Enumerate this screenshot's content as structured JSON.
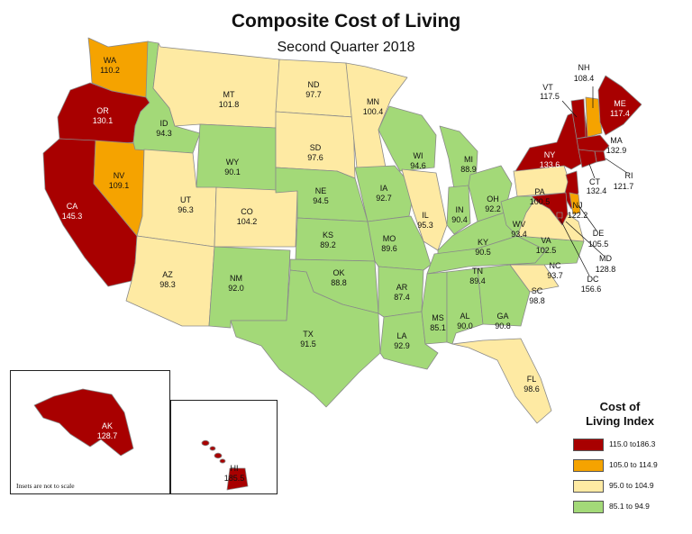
{
  "title": "Composite Cost of Living",
  "subtitle": "Second Quarter 2018",
  "legend": {
    "title_line1": "Cost of",
    "title_line2": "Living Index",
    "items": [
      {
        "label": "115.0 to186.3",
        "color": "#a80000"
      },
      {
        "label": "105.0 to 114.9",
        "color": "#f5a300"
      },
      {
        "label": "95.0 to 104.9",
        "color": "#feeaa3"
      },
      {
        "label": "85.1 to 94.9",
        "color": "#a3d978"
      }
    ]
  },
  "inset_note": "Insets are not to scale",
  "states": {
    "WA": "110.2",
    "OR": "130.1",
    "CA": "145.3",
    "NV": "109.1",
    "ID": "94.3",
    "MT": "101.8",
    "WY": "90.1",
    "UT": "96.3",
    "AZ": "98.3",
    "CO": "104.2",
    "NM": "92.0",
    "ND": "97.7",
    "SD": "97.6",
    "NE": "94.5",
    "KS": "89.2",
    "OK": "88.8",
    "TX": "91.5",
    "MN": "100.4",
    "IA": "92.7",
    "MO": "89.6",
    "AR": "87.4",
    "LA": "92.9",
    "WI": "94.6",
    "IL": "95.3",
    "MI": "88.9",
    "IN": "90.4",
    "OH": "92.2",
    "KY": "90.5",
    "TN": "89.4",
    "MS": "85.1",
    "AL": "90.0",
    "GA": "90.8",
    "FL": "98.6",
    "SC": "98.8",
    "NC": "93.7",
    "VA": "102.5",
    "WV": "93.4",
    "PA": "100.5",
    "NY": "133.6",
    "VT": "117.5",
    "NH": "108.4",
    "ME": "117.4",
    "MA": "132.9",
    "RI": "121.7",
    "CT": "132.4",
    "NJ": "122.2",
    "DE": "105.5",
    "MD": "128.8",
    "DC": "156.6",
    "AK": "128.7",
    "HI": "185.5"
  }
}
